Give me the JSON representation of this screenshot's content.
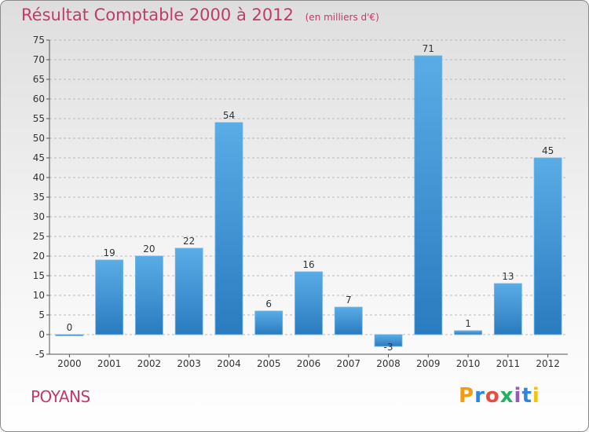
{
  "header": {
    "title": "Résultat Comptable 2000 à 2012",
    "subtitle": "(en milliers d'€)"
  },
  "commune": "POYANS",
  "logo": {
    "letters": [
      {
        "ch": "P",
        "color": "#f39c12"
      },
      {
        "ch": "r",
        "color": "#2e86de"
      },
      {
        "ch": "o",
        "color": "#e74c3c"
      },
      {
        "ch": "x",
        "color": "#27ae60"
      },
      {
        "ch": "i",
        "color": "#9b59b6"
      },
      {
        "ch": "t",
        "color": "#2e86de"
      },
      {
        "ch": "i",
        "color": "#f1c40f"
      }
    ]
  },
  "chart_data": {
    "type": "bar",
    "title": "Résultat Comptable 2000 à 2012",
    "ylabel": "en milliers d'€",
    "categories": [
      "2000",
      "2001",
      "2002",
      "2003",
      "2004",
      "2005",
      "2006",
      "2007",
      "2008",
      "2009",
      "2010",
      "2011",
      "2012"
    ],
    "values": [
      0,
      19,
      20,
      22,
      54,
      6,
      16,
      7,
      -3,
      71,
      1,
      13,
      45
    ],
    "ylim": [
      -5,
      75
    ],
    "yticks": [
      -5,
      0,
      5,
      10,
      15,
      20,
      25,
      30,
      35,
      40,
      45,
      50,
      55,
      60,
      65,
      70,
      75
    ],
    "grid": "horizontal-dashed",
    "bar_color": "#3f97d9"
  }
}
